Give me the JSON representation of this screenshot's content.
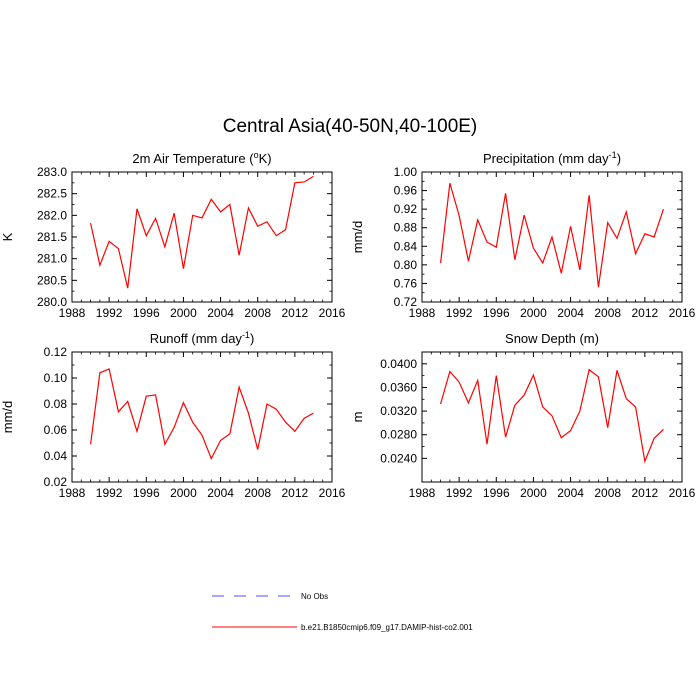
{
  "figure_title": "Central Asia(40-50N,40-100E)",
  "colors": {
    "model_line": "#ff0000",
    "obs_line": "#4d4dff",
    "axis": "#000000"
  },
  "legend": {
    "items": [
      {
        "label": "No Obs",
        "style": "dashed",
        "color": "#4d4dff"
      },
      {
        "label": "b.e21.B1850cmip6.f09_g17.DAMIP-hist-co2.001",
        "style": "solid",
        "color": "#ff0000"
      }
    ]
  },
  "chart_data": [
    {
      "type": "line",
      "title": "2m Air Temperature (",
      "title_sup": "o",
      "title_after": "K)",
      "ylabel": "K",
      "xlim": [
        1988,
        2016
      ],
      "ylim": [
        280.0,
        283.0
      ],
      "xticks": [
        1988,
        1992,
        1996,
        2000,
        2004,
        2008,
        2012,
        2016
      ],
      "xtick_labels": [
        "1988",
        "1992",
        "1996",
        "2000",
        "2004",
        "2008",
        "2012",
        "2016"
      ],
      "yticks": [
        280.0,
        280.5,
        281.0,
        281.5,
        282.0,
        282.5,
        283.0
      ],
      "ytick_labels": [
        "280.0",
        "280.5",
        "281.0",
        "281.5",
        "282.0",
        "282.5",
        "283.0"
      ],
      "x": [
        1990,
        1991,
        1992,
        1993,
        1994,
        1995,
        1996,
        1997,
        1998,
        1999,
        2000,
        2001,
        2002,
        2003,
        2004,
        2005,
        2006,
        2007,
        2008,
        2009,
        2010,
        2011,
        2012,
        2013,
        2014
      ],
      "series": [
        {
          "values": [
            281.82,
            280.85,
            281.4,
            281.23,
            280.32,
            282.15,
            281.53,
            281.93,
            281.27,
            282.05,
            280.77,
            282.0,
            281.94,
            282.37,
            282.08,
            282.25,
            281.08,
            282.17,
            281.75,
            281.85,
            281.53,
            281.67,
            282.75,
            282.77,
            282.9
          ]
        }
      ]
    },
    {
      "type": "line",
      "title": "Precipitation (mm day",
      "title_sup": "-1",
      "title_after": ")",
      "ylabel": "mm/d",
      "xlim": [
        1988,
        2016
      ],
      "ylim": [
        0.72,
        1.0
      ],
      "xticks": [
        1988,
        1992,
        1996,
        2000,
        2004,
        2008,
        2012,
        2016
      ],
      "xtick_labels": [
        "1988",
        "1992",
        "1996",
        "2000",
        "2004",
        "2008",
        "2012",
        "2016"
      ],
      "yticks": [
        0.72,
        0.76,
        0.8,
        0.84,
        0.88,
        0.92,
        0.96,
        1.0
      ],
      "ytick_labels": [
        "0.72",
        "0.76",
        "0.80",
        "0.84",
        "0.88",
        "0.92",
        "0.96",
        "1.00"
      ],
      "x": [
        1990,
        1991,
        1992,
        1993,
        1994,
        1995,
        1996,
        1997,
        1998,
        1999,
        2000,
        2001,
        2002,
        2003,
        2004,
        2005,
        2006,
        2007,
        2008,
        2009,
        2010,
        2011,
        2012,
        2013,
        2014
      ],
      "series": [
        {
          "values": [
            0.804,
            0.976,
            0.906,
            0.808,
            0.897,
            0.849,
            0.838,
            0.954,
            0.811,
            0.907,
            0.836,
            0.804,
            0.86,
            0.782,
            0.883,
            0.789,
            0.95,
            0.752,
            0.891,
            0.857,
            0.914,
            0.824,
            0.867,
            0.86,
            0.92
          ]
        }
      ]
    },
    {
      "type": "line",
      "title": "Runoff (mm day",
      "title_sup": "-1",
      "title_after": ")",
      "ylabel": "mm/d",
      "xlim": [
        1988,
        2016
      ],
      "ylim": [
        0.02,
        0.12
      ],
      "xticks": [
        1988,
        1992,
        1996,
        2000,
        2004,
        2008,
        2012,
        2016
      ],
      "xtick_labels": [
        "1988",
        "1992",
        "1996",
        "2000",
        "2004",
        "2008",
        "2012",
        "2016"
      ],
      "yticks": [
        0.02,
        0.04,
        0.06,
        0.08,
        0.1,
        0.12
      ],
      "ytick_labels": [
        "0.02",
        "0.04",
        "0.06",
        "0.08",
        "0.10",
        "0.12"
      ],
      "x": [
        1990,
        1991,
        1992,
        1993,
        1994,
        1995,
        1996,
        1997,
        1998,
        1999,
        2000,
        2001,
        2002,
        2003,
        2004,
        2005,
        2006,
        2007,
        2008,
        2009,
        2010,
        2011,
        2012,
        2013,
        2014
      ],
      "series": [
        {
          "values": [
            0.049,
            0.104,
            0.107,
            0.074,
            0.082,
            0.059,
            0.086,
            0.087,
            0.049,
            0.062,
            0.081,
            0.066,
            0.056,
            0.038,
            0.052,
            0.057,
            0.093,
            0.073,
            0.045,
            0.08,
            0.076,
            0.066,
            0.059,
            0.069,
            0.073
          ]
        }
      ]
    },
    {
      "type": "line",
      "title": "Snow Depth (m)",
      "title_sup": "",
      "title_after": "",
      "ylabel": "m",
      "xlim": [
        1988,
        2016
      ],
      "ylim": [
        0.02,
        0.042
      ],
      "xticks": [
        1988,
        1992,
        1996,
        2000,
        2004,
        2008,
        2012,
        2016
      ],
      "xtick_labels": [
        "1988",
        "1992",
        "1996",
        "2000",
        "2004",
        "2008",
        "2012",
        "2016"
      ],
      "yticks": [
        0.024,
        0.028,
        0.032,
        0.036,
        0.04
      ],
      "ytick_labels": [
        "0.0240",
        "0.0280",
        "0.0320",
        "0.0360",
        "0.0400"
      ],
      "x": [
        1990,
        1991,
        1992,
        1993,
        1994,
        1995,
        1996,
        1997,
        1998,
        1999,
        2000,
        2001,
        2002,
        2003,
        2004,
        2005,
        2006,
        2007,
        2008,
        2009,
        2010,
        2011,
        2012,
        2013,
        2014
      ],
      "series": [
        {
          "values": [
            0.0332,
            0.0387,
            0.0369,
            0.0334,
            0.0372,
            0.0264,
            0.038,
            0.0276,
            0.033,
            0.0347,
            0.0381,
            0.0327,
            0.0312,
            0.0275,
            0.0287,
            0.032,
            0.039,
            0.0378,
            0.0292,
            0.0389,
            0.0341,
            0.0327,
            0.0235,
            0.0274,
            0.0289
          ]
        }
      ]
    }
  ]
}
